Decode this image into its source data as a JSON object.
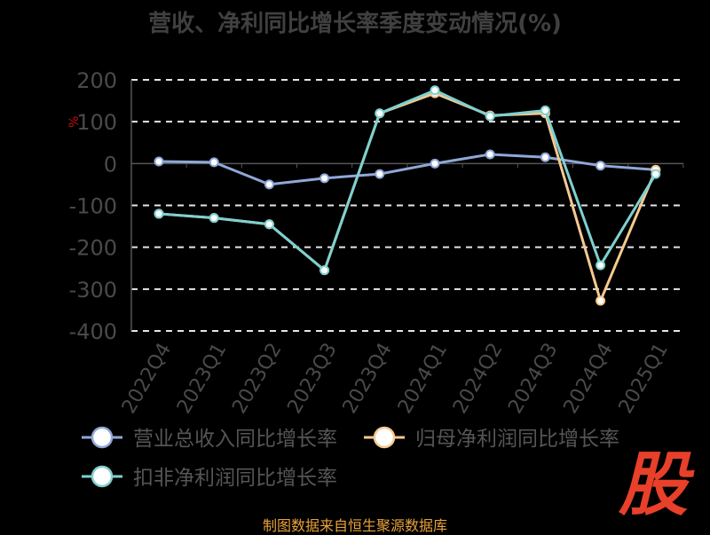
{
  "chart_data": {
    "type": "line",
    "title": "营收、净利同比增长率季度变动情况(%)",
    "ylabel": "%",
    "ylim": [
      -400,
      200
    ],
    "yticks": [
      200,
      100,
      0,
      -100,
      -200,
      -300,
      -400
    ],
    "grid": true,
    "legend_position": "bottom-left",
    "categories": [
      "2022Q4",
      "2023Q1",
      "2023Q2",
      "2023Q3",
      "2023Q4",
      "2024Q1",
      "2024Q2",
      "2024Q3",
      "2024Q4",
      "2025Q1"
    ],
    "series": [
      {
        "name": "营业总收入同比增长率",
        "color": "#8fa8d8",
        "values": [
          5,
          3,
          -50,
          -35,
          -25,
          0,
          22,
          15,
          -5,
          -15
        ]
      },
      {
        "name": "归母净利润同比增长率",
        "color": "#f5c990",
        "values": [
          -120,
          -130,
          -145,
          -255,
          120,
          168,
          115,
          120,
          -328,
          -15
        ]
      },
      {
        "name": "扣非净利润同比增长率",
        "color": "#7fd0d0",
        "values": [
          -120,
          -130,
          -145,
          -255,
          120,
          175,
          113,
          127,
          -243,
          -25
        ]
      }
    ]
  },
  "footer": {
    "source": "制图数据来自恒生聚源数据库"
  },
  "watermark": {
    "text": "股"
  }
}
